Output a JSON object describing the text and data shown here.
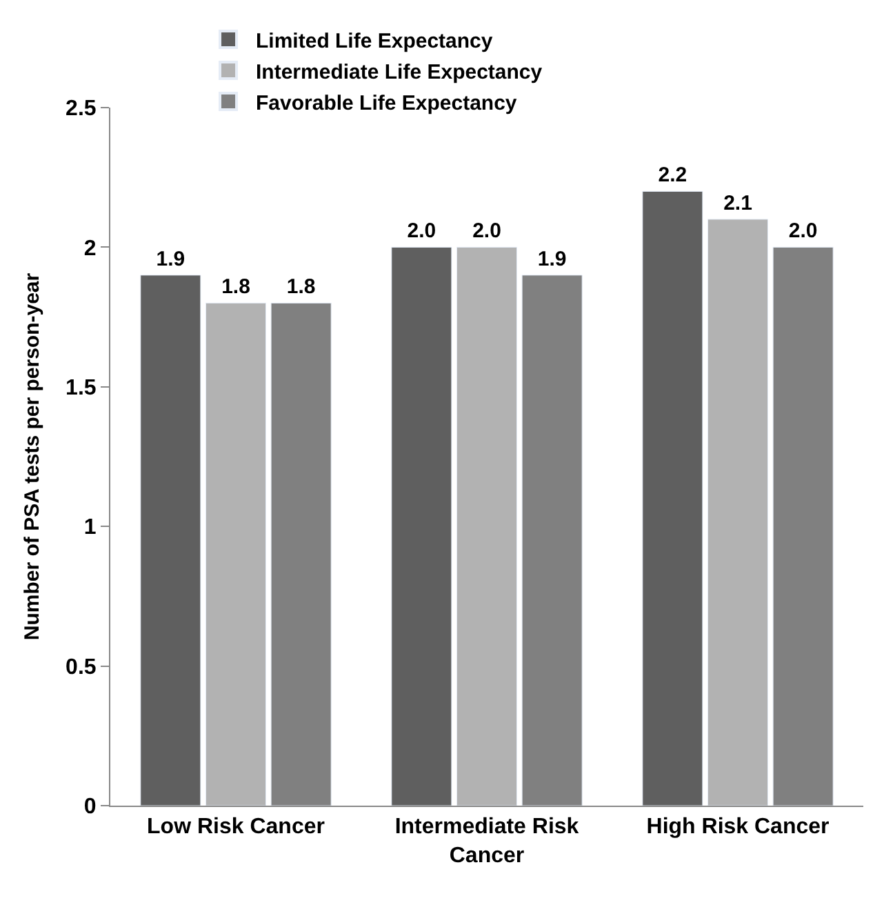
{
  "chart_data": {
    "type": "bar",
    "ylabel": "Number of PSA tests per person-year",
    "categories": [
      "Low Risk Cancer",
      "Intermediate Risk Cancer",
      "High Risk Cancer"
    ],
    "series": [
      {
        "name": "Limited Life Expectancy",
        "color": "#5f5f5f",
        "values": [
          1.9,
          2.0,
          2.2
        ],
        "value_labels": [
          "1.9",
          "2.0",
          "2.2"
        ]
      },
      {
        "name": "Intermediate Life Expectancy",
        "color": "#b2b2b2",
        "values": [
          1.8,
          2.0,
          2.1
        ],
        "value_labels": [
          "1.8",
          "2.0",
          "2.1"
        ]
      },
      {
        "name": "Favorable Life Expectancy",
        "color": "#808080",
        "values": [
          1.8,
          1.9,
          2.0
        ],
        "value_labels": [
          "1.8",
          "1.9",
          "2.0"
        ]
      }
    ],
    "ylim": [
      0,
      2.5
    ],
    "yticks": [
      0,
      0.5,
      1,
      1.5,
      2,
      2.5
    ],
    "legend": "top"
  }
}
